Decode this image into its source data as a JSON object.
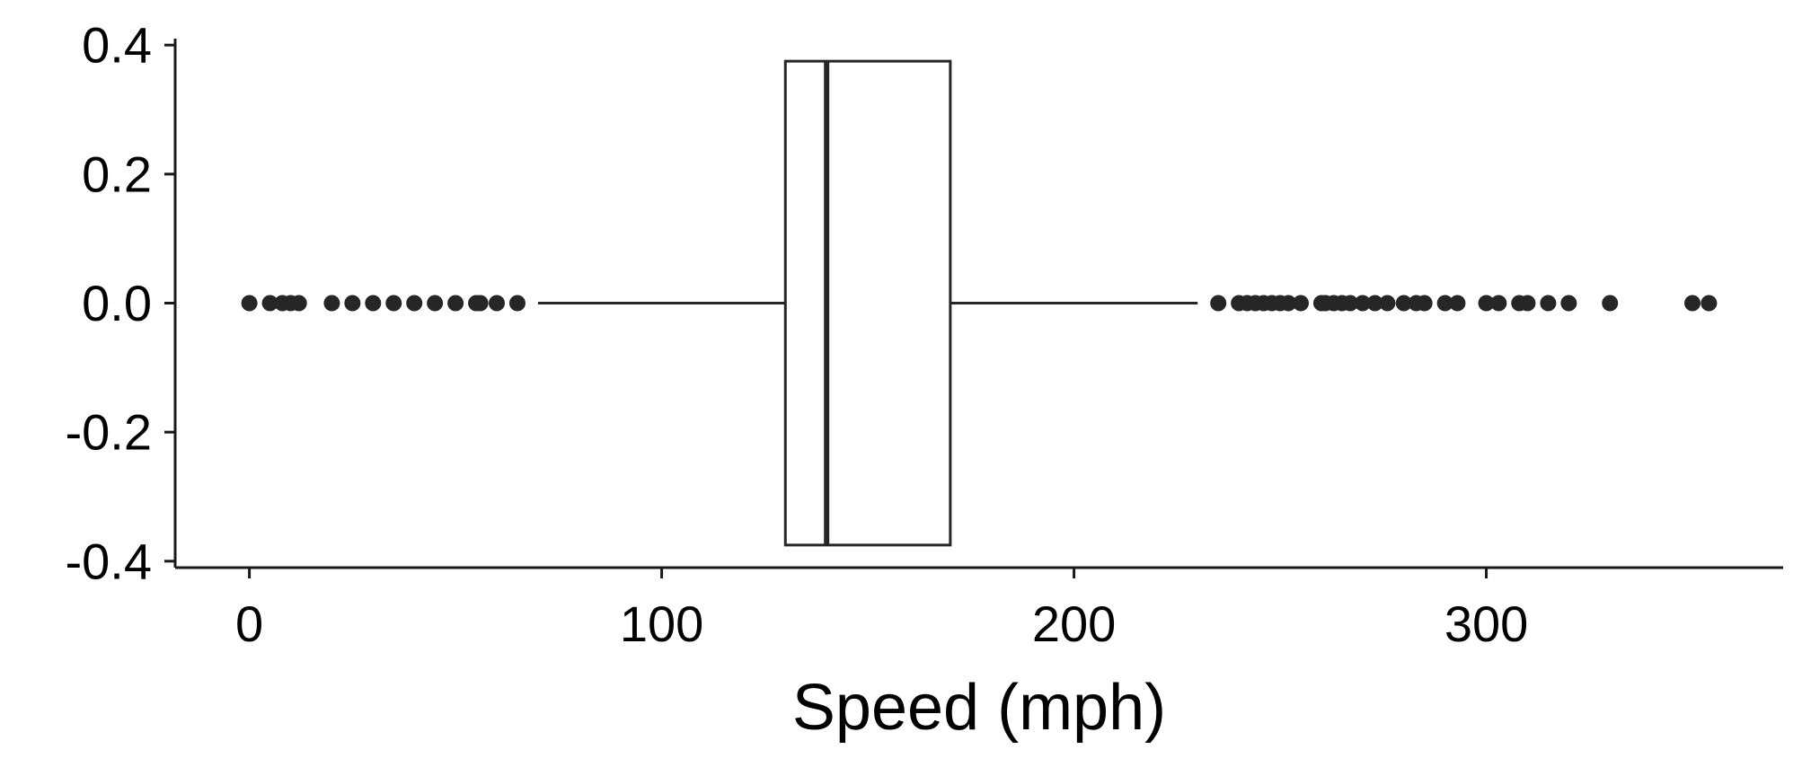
{
  "chart_data": {
    "type": "box",
    "orientation": "horizontal",
    "title": "",
    "xlabel": "Speed (mph)",
    "ylabel": "",
    "xlim": [
      -18,
      372
    ],
    "ylim": [
      -0.41,
      0.41
    ],
    "x_ticks": [
      0,
      100,
      200,
      300
    ],
    "x_tick_labels": [
      "0",
      "100",
      "200",
      "300"
    ],
    "y_ticks": [
      0.4,
      0.2,
      0.0,
      -0.2,
      -0.4
    ],
    "y_tick_labels": [
      "0.4",
      "0.2",
      "0.0",
      "-0.2",
      "-0.4"
    ],
    "grid": false,
    "box": {
      "position": 0.0,
      "half_width": 0.375,
      "whisker_low": 70,
      "q1": 130,
      "median": 140,
      "q3": 170,
      "whisker_high": 230
    },
    "outliers": [
      0,
      5,
      8,
      10,
      12,
      20,
      25,
      30,
      35,
      40,
      45,
      50,
      55,
      56,
      60,
      65,
      235,
      240,
      242,
      244,
      246,
      248,
      250,
      252,
      255,
      260,
      261,
      263,
      265,
      267,
      270,
      273,
      276,
      280,
      283,
      285,
      290,
      293,
      300,
      303,
      308,
      310,
      315,
      320,
      330,
      350,
      354
    ],
    "colors": {
      "axis": "#1a1a1a",
      "box": "#262626",
      "outlier": "#262626"
    }
  }
}
